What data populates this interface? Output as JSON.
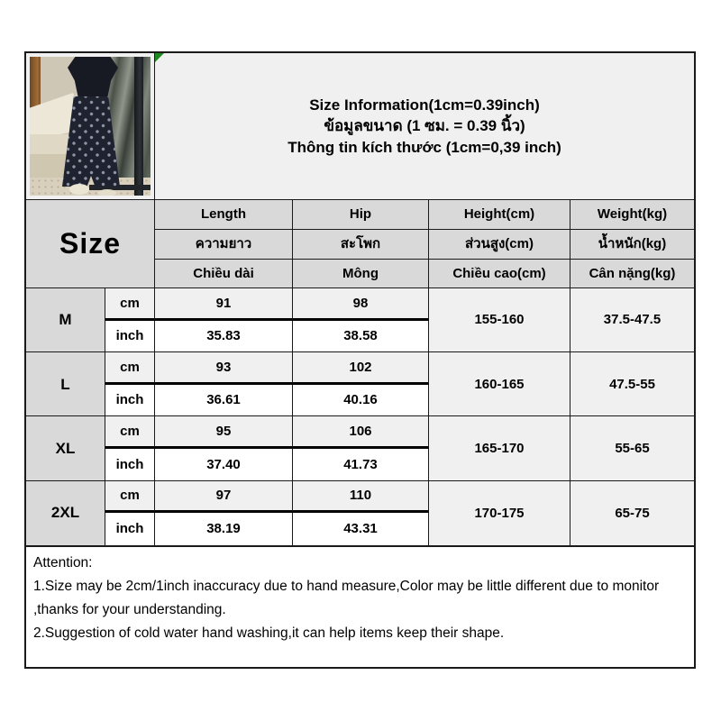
{
  "colors": {
    "border": "#1a1a1a",
    "header_fill": "#d9d9d9",
    "light_fill": "#f0f0f0",
    "white_fill": "#ffffff",
    "flag_green": "#1e8a1e",
    "pants_navy": "#1f2330"
  },
  "title": {
    "en": "Size Information(1cm=0.39inch)",
    "th": "ข้อมูลขนาด (1 ซม. = 0.39 นิ้ว)",
    "vi": "Thông tin kích thước (1cm=0,39 inch)"
  },
  "table": {
    "size_header": "Size",
    "columns": [
      {
        "en": "Length",
        "th": "ความยาว",
        "vi": "Chiều dài"
      },
      {
        "en": "Hip",
        "th": "สะโพก",
        "vi": "Mông"
      },
      {
        "en": "Height(cm)",
        "th": "ส่วนสูง(cm)",
        "vi": "Chiều cao(cm)"
      },
      {
        "en": "Weight(kg)",
        "th": "น้ำหนัก(kg)",
        "vi": "Cân nặng(kg)"
      }
    ],
    "units": {
      "cm": "cm",
      "inch": "inch"
    },
    "rows": [
      {
        "size": "M",
        "length_cm": "91",
        "hip_cm": "98",
        "length_inch": "35.83",
        "hip_inch": "38.58",
        "height": "155-160",
        "weight": "37.5-47.5"
      },
      {
        "size": "L",
        "length_cm": "93",
        "hip_cm": "102",
        "length_inch": "36.61",
        "hip_inch": "40.16",
        "height": "160-165",
        "weight": "47.5-55"
      },
      {
        "size": "XL",
        "length_cm": "95",
        "hip_cm": "106",
        "length_inch": "37.40",
        "hip_inch": "41.73",
        "height": "165-170",
        "weight": "55-65"
      },
      {
        "size": "2XL",
        "length_cm": "97",
        "hip_cm": "110",
        "length_inch": "38.19",
        "hip_inch": "43.31",
        "height": "170-175",
        "weight": "65-75"
      }
    ]
  },
  "attention": {
    "heading": "Attention:",
    "note1": "1.Size may be 2cm/1inch inaccuracy due to hand measure,Color may be little different due to monitor ,thanks for your understanding.",
    "note2": "2.Suggestion of cold water hand washing,it can help items keep their shape."
  }
}
